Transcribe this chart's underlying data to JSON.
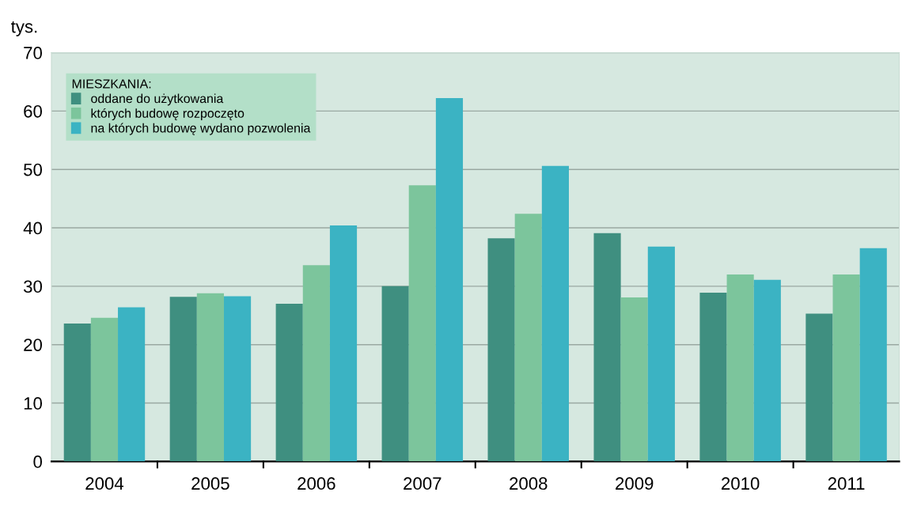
{
  "chart_data": {
    "type": "bar",
    "ylabel": "tys.",
    "legend_title": "MIESZKANIA:",
    "categories": [
      "2004",
      "2005",
      "2006",
      "2007",
      "2008",
      "2009",
      "2010",
      "2011"
    ],
    "series": [
      {
        "name": "oddane do użytkowania",
        "color": "#3f8f80",
        "values": [
          23.6,
          28.2,
          27.0,
          30.0,
          38.2,
          39.1,
          28.9,
          25.3
        ]
      },
      {
        "name": "których budowę rozpoczęto",
        "color": "#7cc59c",
        "values": [
          24.6,
          28.8,
          33.6,
          47.3,
          42.4,
          28.1,
          32.0,
          32.0
        ]
      },
      {
        "name": "na których budowę wydano pozwolenia",
        "color": "#3bb3c3",
        "values": [
          26.4,
          28.3,
          40.4,
          62.2,
          50.6,
          36.8,
          31.1,
          36.5
        ]
      }
    ],
    "ylim": [
      0,
      70
    ],
    "yticks": [
      0,
      10,
      20,
      30,
      40,
      50,
      60,
      70
    ],
    "grid": "y",
    "legend": "top left"
  }
}
